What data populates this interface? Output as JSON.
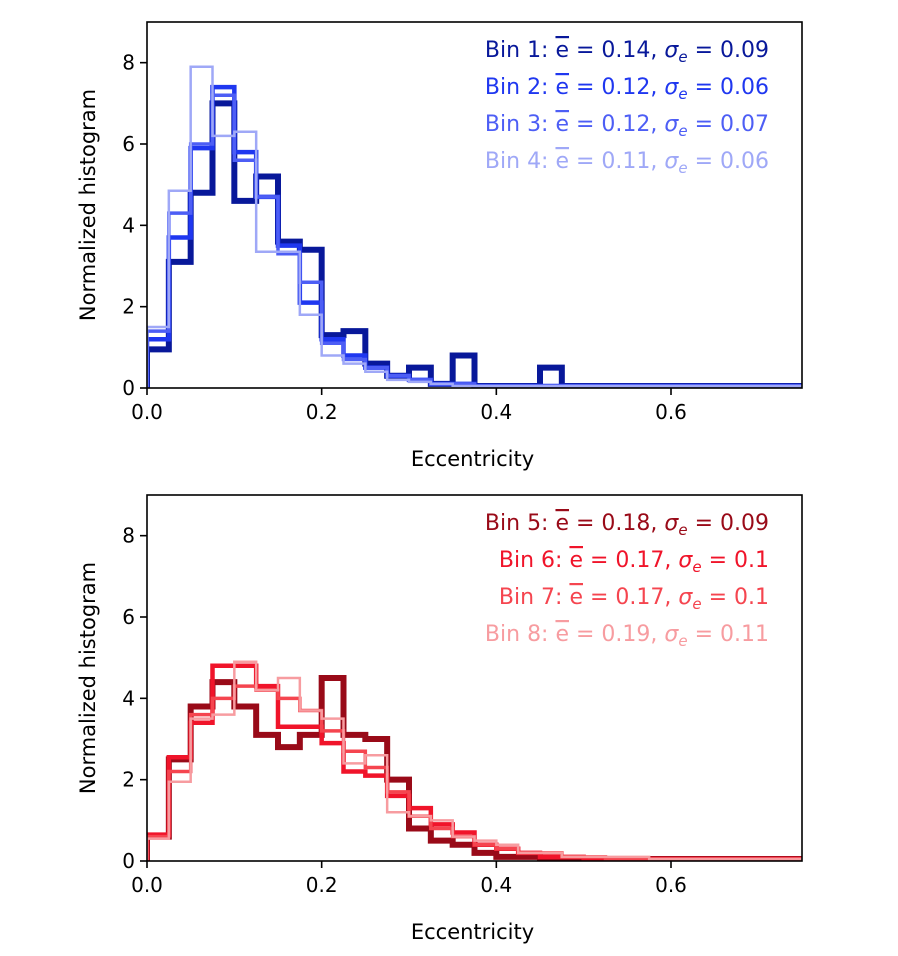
{
  "chart_data": [
    {
      "type": "histogram-step",
      "panel": "top",
      "xlabel": "Eccentricity",
      "ylabel": "Normalized histogram",
      "xlim": [
        0,
        0.75
      ],
      "ylim": [
        0,
        9
      ],
      "xticks": [
        0.0,
        0.2,
        0.4,
        0.6
      ],
      "xtick_labels": [
        "0.0",
        "0.2",
        "0.4",
        "0.6"
      ],
      "yticks": [
        0,
        2,
        4,
        6,
        8
      ],
      "ytick_labels": [
        "0",
        "2",
        "4",
        "6",
        "8"
      ],
      "bin_edges": [
        0,
        0.025,
        0.05,
        0.075,
        0.1,
        0.125,
        0.15,
        0.175,
        0.2,
        0.225,
        0.25,
        0.275,
        0.3,
        0.325,
        0.35,
        0.375,
        0.4,
        0.425,
        0.45,
        0.475,
        0.5,
        0.525,
        0.55,
        0.575,
        0.6,
        0.625,
        0.65,
        0.675,
        0.7,
        0.725,
        0.75
      ],
      "legend_location": "upper right",
      "series": [
        {
          "name": "Bin 1: $\\overline{e} = 0.14$, $\\sigma_e = 0.09$",
          "legend_parts": [
            "Bin 1: ",
            "e",
            " = 0.14, ",
            "σ",
            "e",
            " = 0.09"
          ],
          "color": "#08189a",
          "line_width": 6,
          "values": [
            0.95,
            3.1,
            4.8,
            7.0,
            4.6,
            5.2,
            3.6,
            3.4,
            1.3,
            1.4,
            0.6,
            0.3,
            0.5,
            0.1,
            0.8,
            0.05,
            0.05,
            0.05,
            0.5,
            0.05,
            0.05,
            0.05,
            0.05,
            0.05,
            0.05,
            0.05,
            0.05,
            0.05,
            0.05,
            0.05
          ]
        },
        {
          "name": "Bin 2: $\\overline{e} = 0.12$, $\\sigma_e = 0.06$",
          "legend_parts": [
            "Bin 2: ",
            "e",
            " = 0.12, ",
            "σ",
            "e",
            " = 0.06"
          ],
          "color": "#1f37f0",
          "line_width": 4.5,
          "values": [
            1.2,
            3.7,
            5.9,
            7.4,
            5.8,
            4.7,
            3.5,
            2.1,
            1.2,
            0.8,
            0.5,
            0.3,
            0.2,
            0.1,
            0.1,
            0.05,
            0.05,
            0.05,
            0.05,
            0.05,
            0.05,
            0.05,
            0.05,
            0.05,
            0.05,
            0.05,
            0.05,
            0.05,
            0.05,
            0.05
          ]
        },
        {
          "name": "Bin 3: $\\overline{e} = 0.12$, $\\sigma_e = 0.07$",
          "legend_parts": [
            "Bin 3: ",
            "e",
            " = 0.12, ",
            "σ",
            "e",
            " = 0.07"
          ],
          "color": "#4d5ef5",
          "line_width": 3.5,
          "values": [
            1.4,
            4.3,
            6.0,
            7.2,
            5.6,
            4.7,
            3.3,
            2.6,
            1.1,
            0.7,
            0.5,
            0.3,
            0.2,
            0.1,
            0.1,
            0.05,
            0.05,
            0.05,
            0.05,
            0.05,
            0.05,
            0.05,
            0.05,
            0.05,
            0.05,
            0.05,
            0.05,
            0.05,
            0.05,
            0.05
          ]
        },
        {
          "name": "Bin 4: $\\overline{e} = 0.11$, $\\sigma_e = 0.06$",
          "legend_parts": [
            "Bin 4: ",
            "e",
            " = 0.11, ",
            "σ",
            "e",
            " = 0.06"
          ],
          "color": "#9fa8f7",
          "line_width": 2.5,
          "values": [
            1.5,
            4.85,
            7.9,
            6.2,
            6.3,
            3.35,
            3.35,
            1.8,
            0.8,
            0.6,
            0.4,
            0.2,
            0.15,
            0.1,
            0.05,
            0.05,
            0.05,
            0.05,
            0.05,
            0.05,
            0.05,
            0.05,
            0.05,
            0.05,
            0.05,
            0.05,
            0.05,
            0.05,
            0.05,
            0.05
          ]
        }
      ]
    },
    {
      "type": "histogram-step",
      "panel": "bottom",
      "xlabel": "Eccentricity",
      "ylabel": "Normalized histogram",
      "xlim": [
        0,
        0.75
      ],
      "ylim": [
        0,
        9
      ],
      "xticks": [
        0.0,
        0.2,
        0.4,
        0.6
      ],
      "xtick_labels": [
        "0.0",
        "0.2",
        "0.4",
        "0.6"
      ],
      "yticks": [
        0,
        2,
        4,
        6,
        8
      ],
      "ytick_labels": [
        "0",
        "2",
        "4",
        "6",
        "8"
      ],
      "bin_edges": [
        0,
        0.025,
        0.05,
        0.075,
        0.1,
        0.125,
        0.15,
        0.175,
        0.2,
        0.225,
        0.25,
        0.275,
        0.3,
        0.325,
        0.35,
        0.375,
        0.4,
        0.425,
        0.45,
        0.475,
        0.5,
        0.525,
        0.55,
        0.575,
        0.6,
        0.625,
        0.65,
        0.675,
        0.7,
        0.725,
        0.75
      ],
      "legend_location": "upper right",
      "series": [
        {
          "name": "Bin 5: $\\overline{e} = 0.18$, $\\sigma_e = 0.09$",
          "legend_parts": [
            "Bin 5: ",
            "e",
            " = 0.18, ",
            "σ",
            "e",
            " = 0.09"
          ],
          "color": "#990a18",
          "line_width": 6,
          "values": [
            0.6,
            2.5,
            3.8,
            4.4,
            3.8,
            3.1,
            2.8,
            3.1,
            4.5,
            3.1,
            3.0,
            2.0,
            0.8,
            0.5,
            0.4,
            0.2,
            0.1,
            0.1,
            0.05,
            0.05,
            0.05,
            0.05,
            0.05,
            0.05,
            0.05,
            0.05,
            0.05,
            0.05,
            0.05,
            0.05
          ]
        },
        {
          "name": "Bin 6: $\\overline{e} = 0.17$, $\\sigma_e = 0.1$",
          "legend_parts": [
            "Bin 6: ",
            "e",
            " = 0.17, ",
            "σ",
            "e",
            " = 0.1"
          ],
          "color": "#f0142a",
          "line_width": 4.5,
          "values": [
            0.65,
            2.55,
            3.4,
            4.8,
            4.8,
            4.3,
            3.3,
            3.3,
            2.9,
            2.2,
            2.1,
            1.6,
            1.3,
            0.9,
            0.7,
            0.4,
            0.3,
            0.2,
            0.1,
            0.1,
            0.05,
            0.05,
            0.05,
            0.05,
            0.05,
            0.05,
            0.05,
            0.05,
            0.05,
            0.05
          ]
        },
        {
          "name": "Bin 7: $\\overline{e} = 0.17$, $\\sigma_e = 0.1$",
          "legend_parts": [
            "Bin 7: ",
            "e",
            " = 0.17, ",
            "σ",
            "e",
            " = 0.1"
          ],
          "color": "#f5454f",
          "line_width": 3.5,
          "values": [
            0.6,
            2.2,
            3.6,
            4.0,
            4.3,
            4.2,
            4.0,
            3.7,
            3.2,
            2.7,
            2.3,
            1.7,
            1.1,
            0.8,
            0.6,
            0.4,
            0.3,
            0.2,
            0.2,
            0.1,
            0.1,
            0.05,
            0.05,
            0.05,
            0.05,
            0.05,
            0.05,
            0.05,
            0.05,
            0.05
          ]
        },
        {
          "name": "Bin 8: $\\overline{e} = 0.19$, $\\sigma_e = 0.11$",
          "legend_parts": [
            "Bin 8: ",
            "e",
            " = 0.19, ",
            "σ",
            "e",
            " = 0.11"
          ],
          "color": "#f79ca0",
          "line_width": 2.5,
          "values": [
            0.55,
            1.95,
            3.5,
            3.6,
            4.9,
            4.2,
            4.5,
            3.7,
            3.5,
            2.4,
            2.6,
            1.2,
            1.1,
            1.0,
            0.6,
            0.5,
            0.4,
            0.2,
            0.2,
            0.1,
            0.1,
            0.1,
            0.1,
            0.05,
            0.05,
            0.05,
            0.05,
            0.05,
            0.05,
            0.05
          ]
        }
      ]
    }
  ]
}
